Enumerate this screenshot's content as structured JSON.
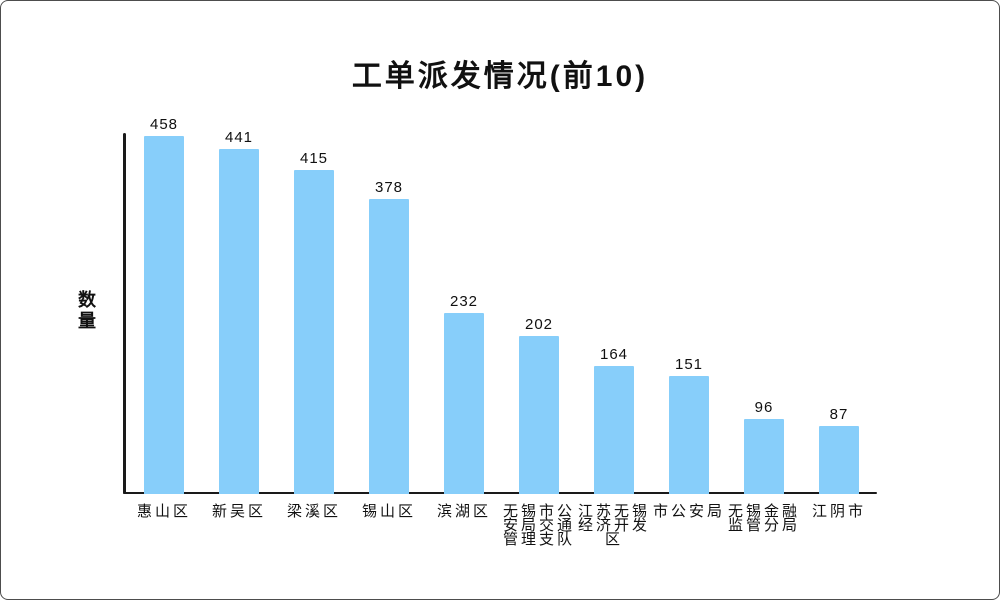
{
  "window": {
    "background": "#ffffff",
    "border_color": "#4d4d4d"
  },
  "chart_data": {
    "type": "bar",
    "title": "工单派发情况(前10)",
    "xlabel": "",
    "ylabel": "数量",
    "categories": [
      "惠山区",
      "新吴区",
      "梁溪区",
      "锡山区",
      "滨湖区",
      "无锡市公安局交通管理支队",
      "江苏无锡经济开发区",
      "市公安局",
      "无锡金融监管分局",
      "江阴市"
    ],
    "values": [
      458,
      441,
      415,
      378,
      232,
      202,
      164,
      151,
      96,
      87
    ],
    "ylim": [
      0,
      458
    ],
    "grid": false,
    "legend": "none",
    "value_labels_shown": true,
    "bar_color": "#87CEFA",
    "axis_color": "#1a1a1a",
    "text_color": "#111111"
  }
}
